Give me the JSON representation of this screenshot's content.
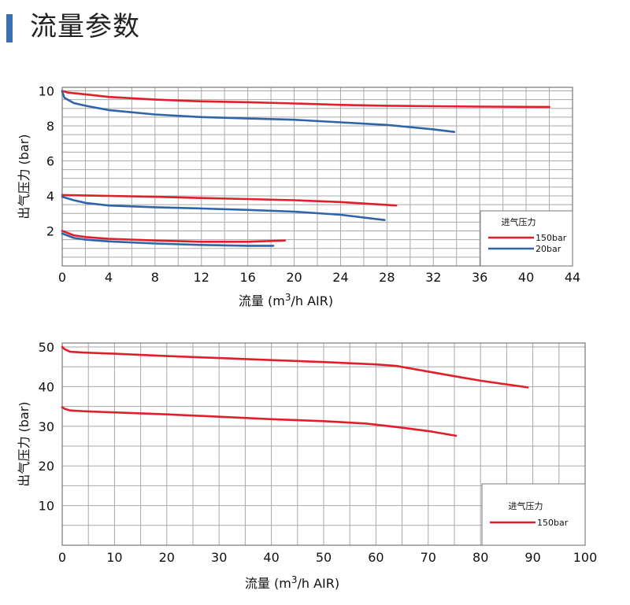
{
  "header": {
    "title": "流量参数",
    "accent_color": "#3a6fb0"
  },
  "colors": {
    "red": "#e01f2b",
    "blue": "#2f63aa",
    "grid": "#a8a8a8",
    "frame": "#777777"
  },
  "chart_data": [
    {
      "type": "line",
      "xlabel_main": "流量 (m",
      "xlabel_sup": "3",
      "xlabel_tail": "/h AIR)",
      "ylabel": "出气压力 (bar)",
      "xlim": [
        0,
        44
      ],
      "ylim": [
        0,
        10.2
      ],
      "x_ticks": [
        "0",
        "4",
        "8",
        "12",
        "16",
        "20",
        "24",
        "28",
        "32",
        "36",
        "40",
        "44"
      ],
      "y_ticks": [
        "10",
        "8",
        "6",
        "4",
        "2"
      ],
      "grid": true,
      "legend_position": "bottom-right",
      "legend_title": "进气压力",
      "series": [
        {
          "name": "150bar",
          "color": "#e01f2b",
          "points": [
            [
              0,
              10
            ],
            [
              0.5,
              9.9
            ],
            [
              2,
              9.8
            ],
            [
              4,
              9.65
            ],
            [
              8,
              9.5
            ],
            [
              12,
              9.4
            ],
            [
              16,
              9.35
            ],
            [
              20,
              9.28
            ],
            [
              24,
              9.2
            ],
            [
              28,
              9.15
            ],
            [
              32,
              9.12
            ],
            [
              36,
              9.1
            ],
            [
              42,
              9.08
            ]
          ]
        },
        {
          "name": "20bar",
          "color": "#2f63aa",
          "points": [
            [
              0,
              9.95
            ],
            [
              0.2,
              9.6
            ],
            [
              1,
              9.3
            ],
            [
              2,
              9.15
            ],
            [
              4,
              8.9
            ],
            [
              8,
              8.65
            ],
            [
              12,
              8.5
            ],
            [
              16,
              8.42
            ],
            [
              20,
              8.35
            ],
            [
              24,
              8.2
            ],
            [
              28,
              8.05
            ],
            [
              32,
              7.8
            ],
            [
              33.8,
              7.65
            ]
          ]
        },
        {
          "name": "150bar",
          "color": "#e01f2b",
          "points": [
            [
              0,
              4.05
            ],
            [
              4,
              4.0
            ],
            [
              8,
              3.95
            ],
            [
              12,
              3.88
            ],
            [
              16,
              3.82
            ],
            [
              20,
              3.75
            ],
            [
              24,
              3.65
            ],
            [
              28.8,
              3.45
            ]
          ]
        },
        {
          "name": "20bar",
          "color": "#2f63aa",
          "points": [
            [
              0,
              3.95
            ],
            [
              1,
              3.75
            ],
            [
              2,
              3.6
            ],
            [
              4,
              3.45
            ],
            [
              8,
              3.35
            ],
            [
              12,
              3.28
            ],
            [
              16,
              3.2
            ],
            [
              20,
              3.1
            ],
            [
              24,
              2.92
            ],
            [
              27.8,
              2.62
            ]
          ]
        },
        {
          "name": "150bar",
          "color": "#e01f2b",
          "points": [
            [
              0,
              2.0
            ],
            [
              1,
              1.75
            ],
            [
              2,
              1.65
            ],
            [
              4,
              1.55
            ],
            [
              8,
              1.45
            ],
            [
              12,
              1.38
            ],
            [
              16,
              1.38
            ],
            [
              19.2,
              1.45
            ]
          ]
        },
        {
          "name": "20bar",
          "color": "#2f63aa",
          "points": [
            [
              0,
              1.85
            ],
            [
              1,
              1.6
            ],
            [
              2,
              1.5
            ],
            [
              4,
              1.4
            ],
            [
              8,
              1.28
            ],
            [
              12,
              1.2
            ],
            [
              16,
              1.15
            ],
            [
              18.2,
              1.15
            ]
          ]
        }
      ],
      "legend": [
        {
          "label": "150bar",
          "color": "#e01f2b"
        },
        {
          "label": "20bar",
          "color": "#2f63aa"
        }
      ]
    },
    {
      "type": "line",
      "xlabel_main": "流量 (m",
      "xlabel_sup": "3",
      "xlabel_tail": "/h AIR)",
      "ylabel": "出气压力 (bar)",
      "xlim": [
        0,
        100
      ],
      "ylim": [
        0,
        51
      ],
      "x_ticks": [
        "0",
        "10",
        "20",
        "30",
        "40",
        "50",
        "60",
        "70",
        "80",
        "90",
        "100"
      ],
      "y_ticks": [
        "50",
        "40",
        "30",
        "20",
        "10"
      ],
      "grid": true,
      "legend_position": "bottom-right",
      "legend_title": "进气压力",
      "series": [
        {
          "name": "150bar",
          "color": "#e01f2b",
          "points": [
            [
              0,
              50
            ],
            [
              0.5,
              49.4
            ],
            [
              1.5,
              48.8
            ],
            [
              4,
              48.6
            ],
            [
              10,
              48.3
            ],
            [
              20,
              47.7
            ],
            [
              30,
              47.2
            ],
            [
              40,
              46.7
            ],
            [
              50,
              46.2
            ],
            [
              60,
              45.6
            ],
            [
              64,
              45.2
            ],
            [
              70,
              43.8
            ],
            [
              76,
              42.4
            ],
            [
              80,
              41.5
            ],
            [
              89,
              39.8
            ]
          ]
        },
        {
          "name": "150bar",
          "color": "#e01f2b",
          "points": [
            [
              0,
              34.8
            ],
            [
              0.5,
              34.4
            ],
            [
              1.5,
              34.0
            ],
            [
              4,
              33.8
            ],
            [
              10,
              33.5
            ],
            [
              20,
              33.0
            ],
            [
              30,
              32.4
            ],
            [
              40,
              31.8
            ],
            [
              50,
              31.3
            ],
            [
              58,
              30.7
            ],
            [
              64,
              29.8
            ],
            [
              70,
              28.8
            ],
            [
              75.3,
              27.6
            ]
          ]
        }
      ],
      "legend": [
        {
          "label": "150bar",
          "color": "#e01f2b"
        }
      ]
    }
  ]
}
